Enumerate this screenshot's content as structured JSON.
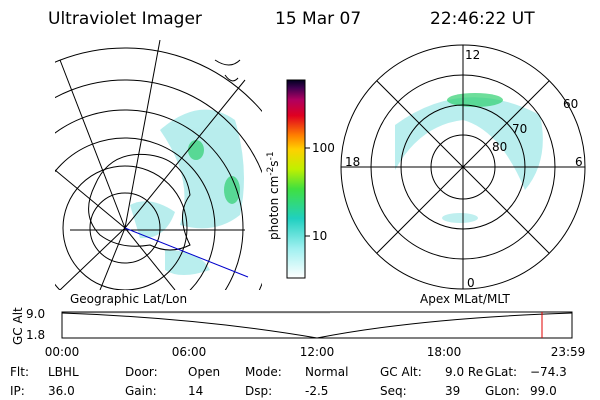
{
  "header": {
    "title": "Ultraviolet Imager",
    "date": "15 Mar 07",
    "time": "22:46:22 UT"
  },
  "colorbar": {
    "ticks": [
      "100",
      "10"
    ],
    "unit": {
      "base": "photon cm",
      "exp1": "-2",
      "mid": "s",
      "exp2": "-1"
    }
  },
  "left_panel": {
    "label": "Geographic Lat/Lon"
  },
  "right_panel": {
    "label": "Apex MLat/MLT",
    "mlt_labels": [
      "12",
      "18",
      "6",
      "0"
    ],
    "lat_labels": [
      "60",
      "70",
      "80"
    ]
  },
  "orbit_plot": {
    "ylabel": "GC Alt",
    "yticks": [
      "9.0",
      "1.8"
    ],
    "xticks": [
      "00:00",
      "06:00",
      "12:00",
      "18:00",
      "23:59"
    ]
  },
  "info": [
    {
      "label": "Flt:",
      "value": "LBHL"
    },
    {
      "label": "IP:",
      "value": "36.0"
    },
    {
      "label": "Door:",
      "value": "Open"
    },
    {
      "label": "Gain:",
      "value": "14"
    },
    {
      "label": "Mode:",
      "value": "Normal"
    },
    {
      "label": "Dsp:",
      "value": "-2.5"
    },
    {
      "label": "GC Alt:",
      "value": "9.0 Re"
    },
    {
      "label": "Seq:",
      "value": "39"
    },
    {
      "label": "GLat:",
      "value": "−74.3"
    },
    {
      "label": "GLon:",
      "value": "99.0"
    }
  ]
}
